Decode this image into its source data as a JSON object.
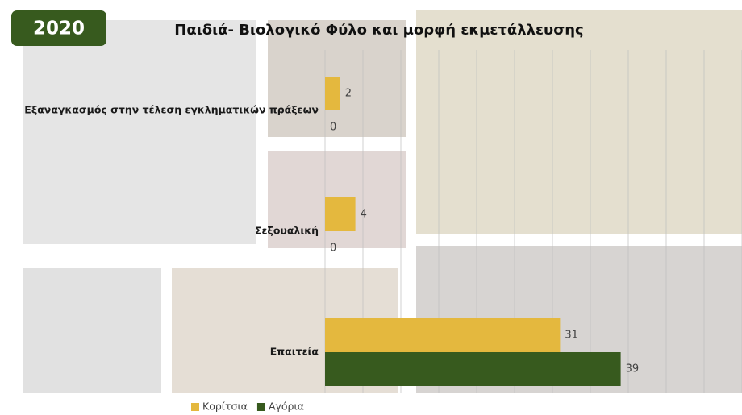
{
  "chart_data": {
    "type": "hbar",
    "badge": "2020",
    "title": "Παιδιά- Βιολογικό Φύλο και μορφή εκμετάλλευσης",
    "categories": [
      "Εξαναγκασμός στην τέλεση εγκληματικών πράξεων",
      "Σεξουαλική",
      "Επαιτεία"
    ],
    "series": [
      {
        "name": "Κορίτσια",
        "color": "#e4b83e",
        "values": [
          2,
          4,
          31
        ]
      },
      {
        "name": "Αγόρια",
        "color": "#375a1e",
        "values": [
          0,
          0,
          39
        ]
      }
    ],
    "xlim": [
      0,
      55
    ],
    "xticks": [
      0,
      5,
      10,
      15,
      20,
      25,
      30,
      35,
      40,
      45,
      50,
      55
    ],
    "grid": true,
    "legend": "bottom"
  }
}
